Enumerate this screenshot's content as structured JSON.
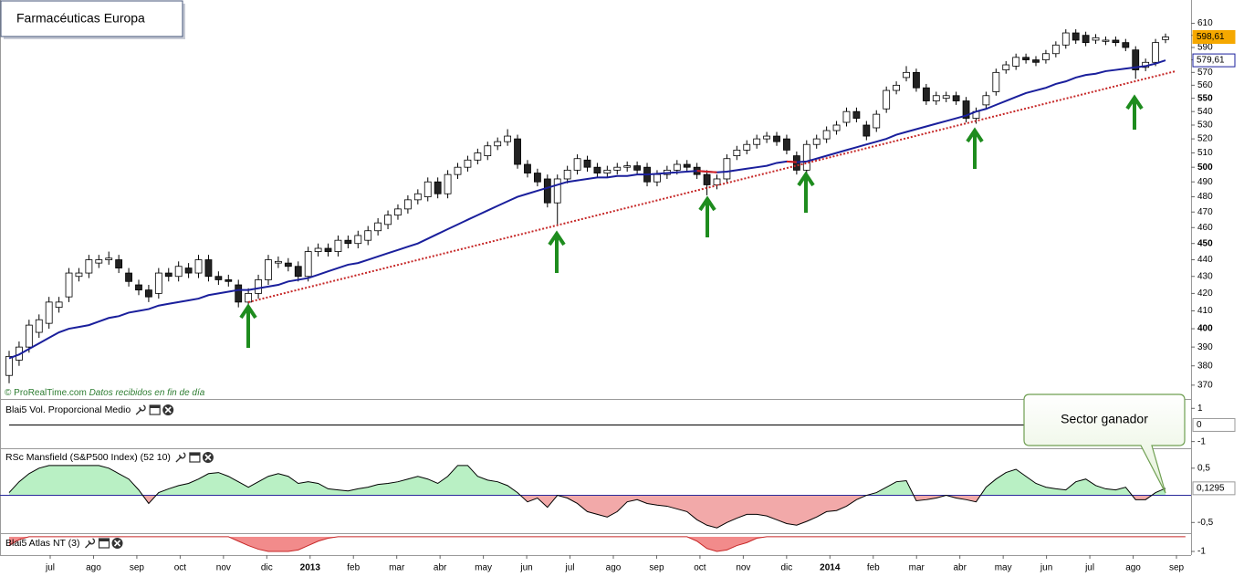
{
  "chart_data": {
    "type": "candlestick",
    "title": "Farmacéuticas Europa",
    "source": "© ProRealTime.com",
    "source_note": "Datos recibidos en fin de día",
    "annotation": "Sector ganador",
    "x_labels": [
      "jul",
      "ago",
      "sep",
      "oct",
      "nov",
      "dic",
      "2013",
      "feb",
      "mar",
      "abr",
      "may",
      "jun",
      "jul",
      "ago",
      "sep",
      "oct",
      "nov",
      "dic",
      "2014",
      "feb",
      "mar",
      "abr",
      "may",
      "jun",
      "jul",
      "ago",
      "sep"
    ],
    "open": [
      375,
      383,
      390,
      398,
      403,
      412,
      418,
      430,
      432,
      438,
      440,
      440,
      432,
      425,
      422,
      420,
      432,
      430,
      435,
      432,
      440,
      430,
      428,
      425,
      415,
      420,
      428,
      438,
      438,
      436,
      430,
      445,
      447,
      445,
      452,
      450,
      452,
      458,
      462,
      468,
      472,
      478,
      480,
      490,
      482,
      495,
      500,
      505,
      508,
      515,
      518,
      520,
      502,
      496,
      492,
      476,
      492,
      498,
      505,
      500,
      496,
      498,
      500,
      501,
      500,
      490,
      495,
      498,
      502,
      500,
      495,
      488,
      492,
      508,
      512,
      516,
      520,
      522,
      520,
      508,
      498,
      516,
      520,
      526,
      532,
      540,
      530,
      528,
      542,
      556,
      566,
      570,
      558,
      548,
      550,
      552,
      548,
      535,
      545,
      555,
      572,
      575,
      582,
      580,
      580,
      585,
      592,
      602,
      600,
      596,
      595,
      596,
      594,
      588,
      574,
      578,
      596.5
    ],
    "high": [
      388,
      393,
      405,
      408,
      418,
      418,
      435,
      435,
      443,
      443,
      445,
      443,
      435,
      428,
      425,
      435,
      435,
      439,
      438,
      443,
      443,
      433,
      431,
      428,
      423,
      431,
      443,
      442,
      441,
      439,
      448,
      450,
      450,
      455,
      455,
      458,
      461,
      466,
      471,
      475,
      481,
      485,
      493,
      493,
      498,
      503,
      508,
      513,
      518,
      521,
      527,
      523,
      505,
      499,
      495,
      495,
      501,
      509,
      508,
      503,
      501,
      503,
      504,
      504,
      503,
      498,
      501,
      505,
      505,
      503,
      498,
      495,
      509,
      515,
      519,
      523,
      525,
      525,
      523,
      511,
      519,
      523,
      529,
      533,
      543,
      543,
      533,
      541,
      559,
      563,
      575,
      573,
      561,
      555,
      555,
      555,
      551,
      543,
      555,
      573,
      579,
      585,
      585,
      583,
      588,
      595,
      605,
      605,
      603,
      601,
      599,
      599,
      597,
      591,
      581,
      597,
      601.5
    ],
    "low": [
      371,
      380,
      387,
      395,
      400,
      409,
      415,
      427,
      429,
      435,
      437,
      432,
      424,
      419,
      415,
      417,
      427,
      427,
      429,
      429,
      427,
      425,
      424,
      412,
      412,
      417,
      425,
      435,
      433,
      427,
      427,
      442,
      442,
      442,
      447,
      447,
      449,
      455,
      459,
      465,
      469,
      475,
      477,
      479,
      479,
      492,
      497,
      502,
      505,
      512,
      515,
      499,
      493,
      487,
      473,
      462,
      489,
      495,
      497,
      493,
      493,
      495,
      497,
      495,
      487,
      487,
      492,
      495,
      497,
      492,
      481,
      485,
      489,
      505,
      509,
      513,
      517,
      515,
      509,
      495,
      495,
      513,
      517,
      523,
      529,
      532,
      519,
      525,
      539,
      553,
      563,
      555,
      545,
      545,
      547,
      545,
      532,
      531,
      542,
      552,
      569,
      572,
      577,
      575,
      577,
      582,
      589,
      593,
      591,
      593,
      592,
      591,
      587,
      565,
      571,
      575,
      593.5
    ],
    "close": [
      385,
      390,
      402,
      405,
      415,
      415,
      432,
      432,
      440,
      440,
      441,
      435,
      427,
      422,
      418,
      432,
      430,
      436,
      432,
      440,
      430,
      428,
      427,
      415,
      420,
      428,
      440,
      439,
      436,
      430,
      445,
      447,
      445,
      452,
      450,
      455,
      458,
      463,
      468,
      472,
      478,
      482,
      490,
      482,
      495,
      500,
      505,
      510,
      515,
      518,
      522,
      502,
      496,
      490,
      476,
      492,
      498,
      506,
      500,
      496,
      498,
      500,
      501,
      498,
      490,
      495,
      498,
      502,
      500,
      495,
      488,
      492,
      506,
      512,
      516,
      520,
      522,
      518,
      512,
      498,
      516,
      520,
      526,
      530,
      540,
      535,
      522,
      538,
      556,
      560,
      570,
      558,
      548,
      552,
      552,
      548,
      535,
      540,
      552,
      570,
      576,
      582,
      580,
      578,
      585,
      592,
      602,
      596,
      594,
      598,
      596,
      594,
      590,
      572,
      578,
      594,
      598.61
    ],
    "up_color": "#ffffff",
    "down_color": "#222222",
    "log_scale": true,
    "ylim": [
      363,
      630
    ],
    "yticks": [
      370,
      380,
      390,
      400,
      410,
      420,
      430,
      440,
      450,
      460,
      470,
      480,
      490,
      500,
      510,
      520,
      530,
      540,
      550,
      560,
      570,
      580,
      590,
      600,
      610
    ],
    "last_price": {
      "value": 598.61,
      "label": "598,61"
    },
    "last_price_color": "#f5a800",
    "moving_average": {
      "color": "#1a1f9c",
      "falling_color": "#d42020",
      "values": [
        384,
        386,
        389,
        392,
        395,
        398,
        400,
        401,
        402,
        404,
        406,
        407,
        409,
        410,
        411,
        413,
        414,
        415,
        416,
        417,
        419,
        420,
        421,
        422,
        422,
        423,
        424,
        425,
        427,
        428,
        429,
        431,
        433,
        435,
        437,
        438,
        440,
        442,
        444,
        446,
        448,
        450,
        453,
        456,
        459,
        462,
        465,
        468,
        471,
        474,
        477,
        480,
        482,
        484,
        486,
        488,
        490,
        491,
        492,
        493,
        493,
        494,
        494,
        495,
        495,
        495.5,
        496,
        496.5,
        497,
        497.5,
        497,
        496.5,
        497,
        498,
        499,
        500,
        501,
        503,
        504,
        503.5,
        504,
        506,
        508,
        510,
        512,
        514,
        516,
        518,
        520,
        523,
        525,
        527,
        529,
        531,
        533,
        535,
        537,
        540,
        542,
        545,
        548,
        551,
        554,
        556,
        558,
        561,
        563,
        566,
        568,
        569,
        571,
        572,
        573,
        574,
        575,
        577,
        579.61
      ],
      "last": {
        "value": 579.61,
        "label": "579,61"
      }
    },
    "panels": [
      {
        "title": "Blai5 Vol. Proporcional Medio",
        "ylim": [
          -1.35,
          1.4
        ],
        "yticks": [
          1,
          -1
        ],
        "color": "#000000",
        "values": [
          0,
          0,
          0,
          0,
          0,
          0,
          0,
          0,
          0,
          0,
          0,
          0,
          0,
          0,
          0,
          0,
          0,
          0,
          0,
          0,
          0,
          0,
          0,
          0,
          0,
          0,
          0,
          0,
          0,
          0,
          0,
          0,
          0,
          0,
          0,
          0,
          0,
          0,
          0,
          0,
          0,
          0,
          0,
          0,
          0,
          0,
          0,
          0,
          0,
          0,
          0,
          0,
          0,
          0,
          0,
          0,
          0,
          0,
          0,
          0,
          0,
          0,
          0,
          0,
          0,
          0,
          0,
          0,
          0,
          0,
          0,
          0,
          0,
          0,
          0,
          0,
          0,
          0,
          0,
          0,
          0,
          0,
          0,
          0,
          0,
          0,
          0,
          0,
          0,
          0,
          0,
          0,
          0,
          0,
          0,
          0,
          0,
          0,
          0,
          0,
          0,
          0,
          0,
          0,
          0,
          0,
          0,
          0,
          0,
          0,
          0,
          0,
          0,
          0,
          0,
          0,
          0
        ],
        "last": 0
      },
      {
        "title": "RSc Mansfield (S&P500 Index) (52 10)",
        "ylim": [
          -0.68,
          0.85
        ],
        "yticks": [
          {
            "value": 0.5,
            "label": "0,5"
          },
          {
            "value": -0.5,
            "label": "-0,5"
          }
        ],
        "color": "#000000",
        "positive_color": "#b9f0c4",
        "negative_color": "#f2a9a9",
        "zero_color": "#2a2a9a",
        "values": [
          0.05,
          0.25,
          0.4,
          0.5,
          0.55,
          0.55,
          0.55,
          0.55,
          0.55,
          0.55,
          0.5,
          0.4,
          0.3,
          0.1,
          -0.15,
          0.05,
          0.12,
          0.18,
          0.22,
          0.3,
          0.4,
          0.42,
          0.35,
          0.25,
          0.15,
          0.25,
          0.35,
          0.4,
          0.35,
          0.22,
          0.25,
          0.22,
          0.12,
          0.1,
          0.08,
          0.12,
          0.15,
          0.2,
          0.22,
          0.25,
          0.3,
          0.35,
          0.3,
          0.22,
          0.35,
          0.55,
          0.55,
          0.35,
          0.28,
          0.25,
          0.18,
          0.05,
          -0.12,
          -0.05,
          -0.22,
          0,
          -0.05,
          -0.15,
          -0.3,
          -0.35,
          -0.4,
          -0.3,
          -0.12,
          -0.08,
          -0.15,
          -0.18,
          -0.2,
          -0.25,
          -0.3,
          -0.45,
          -0.55,
          -0.6,
          -0.5,
          -0.42,
          -0.35,
          -0.35,
          -0.38,
          -0.45,
          -0.52,
          -0.55,
          -0.48,
          -0.4,
          -0.3,
          -0.28,
          -0.2,
          -0.08,
          0,
          0.05,
          0.15,
          0.25,
          0.27,
          -0.1,
          -0.08,
          -0.05,
          0,
          -0.05,
          -0.08,
          -0.12,
          0.15,
          0.3,
          0.42,
          0.48,
          0.35,
          0.22,
          0.15,
          0.12,
          0.1,
          0.25,
          0.3,
          0.18,
          0.12,
          0.1,
          0.15,
          -0.08,
          -0.08,
          0.05,
          0.1295
        ],
        "last": {
          "value": 0.1295,
          "label": "0,1295"
        }
      },
      {
        "title": "Blai5 Atlas NT (3)",
        "ylim": [
          -1.25,
          0.12
        ],
        "yticks": [
          -1
        ],
        "color": "#c62828",
        "negative_color": "#f28b8b",
        "values": [
          -0.6,
          -0.2,
          0,
          0,
          0,
          0,
          0,
          0,
          0,
          0,
          0,
          0,
          0,
          0,
          0,
          0,
          0,
          0,
          0,
          0,
          0,
          0,
          0,
          -0.3,
          -0.6,
          -0.85,
          -1,
          -1,
          -1,
          -0.9,
          -0.6,
          -0.3,
          -0.1,
          0,
          0,
          0,
          0,
          0,
          0,
          0,
          0,
          0,
          0,
          0,
          0,
          0,
          0,
          0,
          0,
          0,
          0,
          0,
          0,
          0,
          0,
          0,
          0,
          0,
          0,
          0,
          0,
          0,
          0,
          0,
          0,
          0,
          0,
          0,
          0,
          -0.3,
          -0.8,
          -1,
          -0.9,
          -0.6,
          -0.4,
          -0.1,
          0,
          0,
          0,
          0,
          0,
          0,
          0,
          0,
          0,
          0,
          0,
          0,
          0,
          0,
          0,
          0,
          0,
          0,
          0,
          0,
          0,
          0,
          0,
          0,
          0,
          0,
          0,
          0,
          0,
          0,
          0,
          0,
          0,
          0,
          0,
          0,
          0,
          0,
          0,
          0,
          0,
          0,
          0
        ]
      }
    ]
  }
}
